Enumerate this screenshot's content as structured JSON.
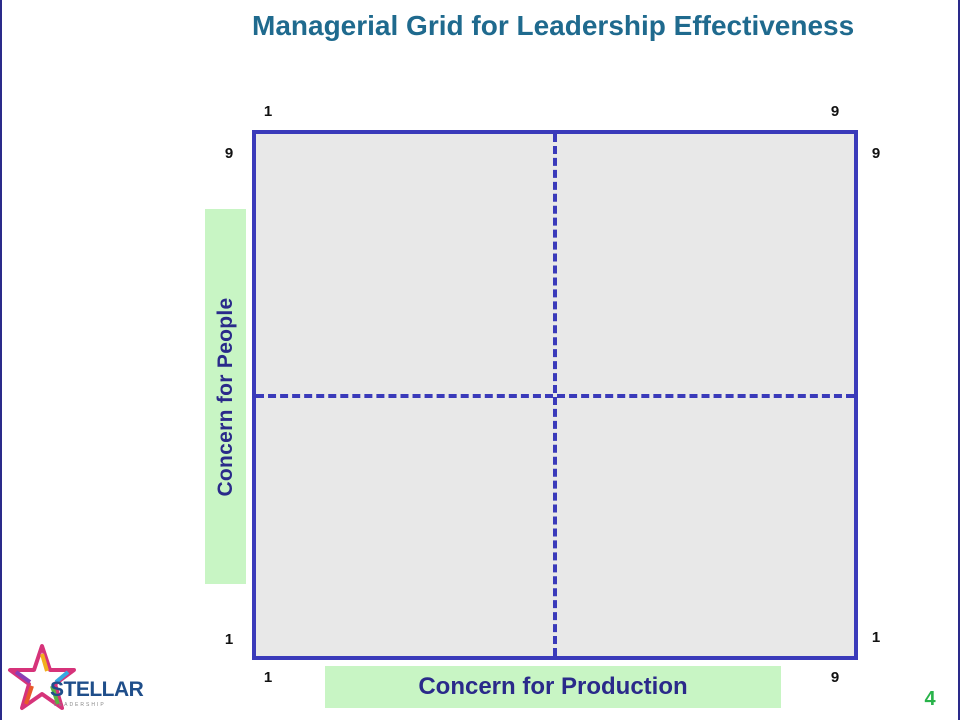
{
  "title": "Managerial Grid for Leadership Effectiveness",
  "grid": {
    "top_left_x": "1",
    "top_right_x": "9",
    "left_top_y": "9",
    "right_top_y": "9",
    "left_bottom_y": "1",
    "right_bottom_y": "1",
    "bottom_left_x": "1",
    "bottom_right_x": "9"
  },
  "axes": {
    "y_label": "Concern for People",
    "x_label": "Concern for Production"
  },
  "logo": {
    "word": "STELLAR",
    "subword": "LEADERSHIP"
  },
  "page_number": "4",
  "colors": {
    "title": "#1f6a8e",
    "grid_border": "#3a3aba",
    "grid_fill": "#e8e8e8",
    "label_fill": "#c8f5c4",
    "label_text": "#2a2a8a",
    "page_number": "#29b34a"
  }
}
